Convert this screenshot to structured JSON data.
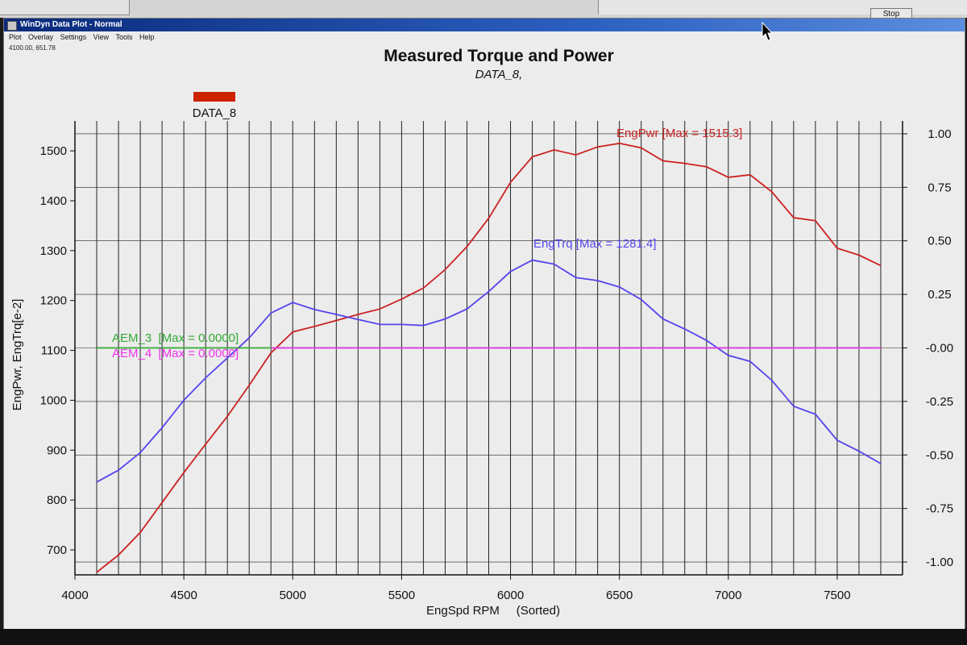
{
  "window": {
    "title": "WinDyn Data Plot - Normal",
    "menu": [
      "Plot",
      "Overlay",
      "Settings",
      "View",
      "Tools",
      "Help"
    ],
    "coord_readout": "4100.00, 651.78",
    "stop_button": "Stop"
  },
  "chart_data": {
    "type": "line",
    "title": "Measured Torque and Power",
    "subtitle": "DATA_8,",
    "legend": [
      {
        "name": "DATA_8",
        "color": "#cc2200"
      }
    ],
    "legend_placement": "top-left",
    "xlabel": "EngSpd RPM     (Sorted)",
    "ylabel": "EngPwr, EngTrq[e-2]",
    "xlim": [
      4000,
      7800
    ],
    "ylim": [
      650,
      1560
    ],
    "y2lim": [
      -1.06,
      1.06
    ],
    "grid": true,
    "xticks": [
      "4000",
      "4500",
      "5000",
      "5500",
      "6000",
      "6500",
      "7000",
      "7500"
    ],
    "yticks": [
      "700",
      "800",
      "900",
      "1000",
      "1100",
      "1200",
      "1300",
      "1400",
      "1500"
    ],
    "y2ticks": [
      "1.00",
      "0.75",
      "0.50",
      "0.25",
      "-0.00",
      "-0.25",
      "-0.50",
      "-0.75",
      "-1.00"
    ],
    "series": [
      {
        "name": "EngPwr",
        "label": "EngPwr [Max = 1515.3]",
        "color": "#cc2222",
        "axis": "left",
        "x": [
          4100,
          4200,
          4300,
          4400,
          4500,
          4600,
          4700,
          4800,
          4900,
          5000,
          5100,
          5200,
          5300,
          5400,
          5500,
          5600,
          5700,
          5800,
          5900,
          6000,
          6100,
          6200,
          6300,
          6400,
          6500,
          6600,
          6700,
          6800,
          6900,
          7000,
          7100,
          7200,
          7300,
          7400,
          7500,
          7600,
          7700
        ],
        "y": [
          655,
          690,
          735,
          795,
          855,
          912,
          968,
          1030,
          1095,
          1137,
          1148,
          1160,
          1172,
          1183,
          1203,
          1225,
          1262,
          1308,
          1365,
          1437,
          1488,
          1502,
          1492,
          1508,
          1515,
          1506,
          1480,
          1475,
          1468,
          1447,
          1452,
          1418,
          1366,
          1360,
          1305,
          1291,
          1270
        ]
      },
      {
        "name": "EngTrq",
        "label": "EngTrq [Max = 1281.4]",
        "color": "#5544ee",
        "axis": "left",
        "x": [
          4100,
          4200,
          4300,
          4400,
          4500,
          4600,
          4700,
          4800,
          4900,
          5000,
          5100,
          5200,
          5300,
          5400,
          5500,
          5600,
          5700,
          5800,
          5900,
          6000,
          6100,
          6200,
          6300,
          6400,
          6500,
          6600,
          6700,
          6800,
          6900,
          7000,
          7100,
          7200,
          7300,
          7400,
          7500,
          7600,
          7700
        ],
        "y": [
          836,
          860,
          895,
          945,
          1000,
          1045,
          1085,
          1125,
          1175,
          1196,
          1182,
          1172,
          1162,
          1152,
          1152,
          1150,
          1163,
          1183,
          1218,
          1258,
          1281,
          1273,
          1246,
          1240,
          1227,
          1202,
          1163,
          1143,
          1120,
          1090,
          1078,
          1040,
          988,
          972,
          920,
          898,
          873
        ]
      },
      {
        "name": "AEM_3",
        "label": "AEM_3  [Max = 0.0000]",
        "color": "#33aa33",
        "axis": "right",
        "x": [
          4100,
          7700
        ],
        "y": [
          0,
          0
        ]
      },
      {
        "name": "AEM_4",
        "label": "AEM_4  [Max = 0.0000]",
        "color": "#ee33ee",
        "axis": "right",
        "x": [
          4900,
          7700
        ],
        "y": [
          0,
          0
        ]
      }
    ]
  }
}
